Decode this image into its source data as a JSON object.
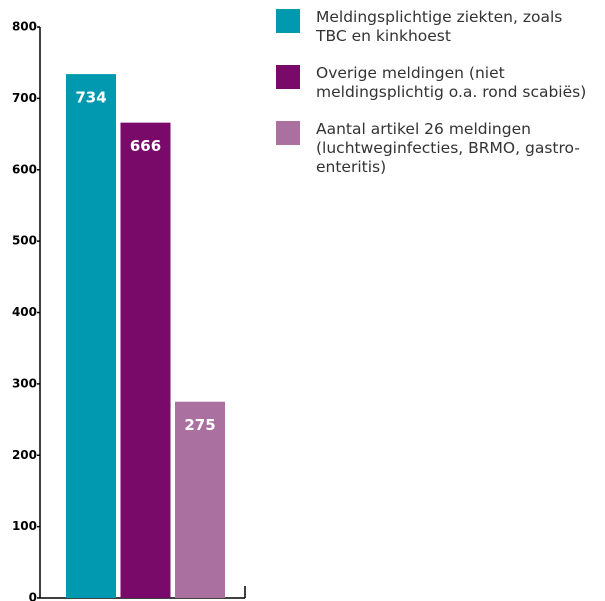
{
  "chart_data": {
    "type": "bar",
    "series": [
      {
        "name": "Meldingsplichtige ziekten, zoals TBC en kinkhoest",
        "color": "#0099b0",
        "values": [
          734
        ]
      },
      {
        "name": "Overige meldingen (niet meldingsplichtig o.a. rond scabiës)",
        "color": "#7a0a6a",
        "values": [
          666
        ]
      },
      {
        "name": "Aantal artikel 26 meldingen (luchtweginfecties, BRMO, gastro-enteritis)",
        "color": "#a970a0",
        "values": [
          275
        ]
      }
    ],
    "ylim": [
      0,
      800
    ],
    "yticks": [
      0,
      100,
      200,
      300,
      400,
      500,
      600,
      700,
      800
    ]
  }
}
